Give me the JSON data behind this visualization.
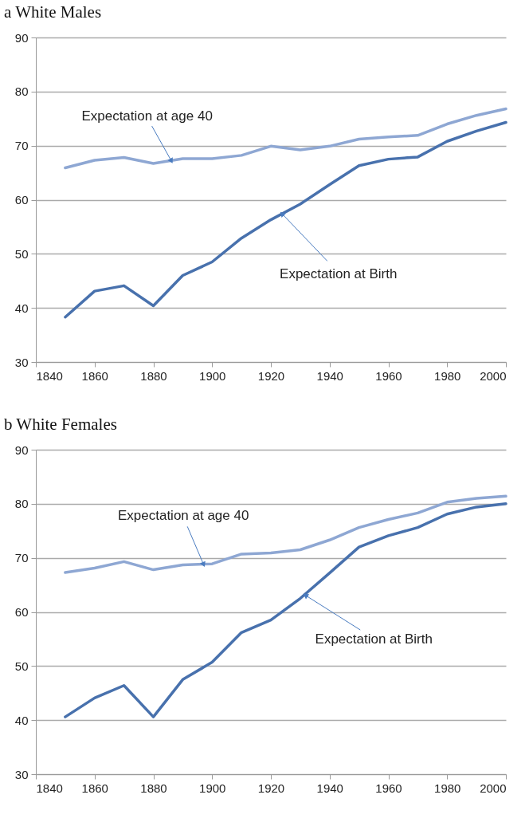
{
  "chart_data": [
    {
      "type": "line",
      "title": "a White Males",
      "x": [
        1850,
        1860,
        1870,
        1880,
        1890,
        1900,
        1910,
        1920,
        1930,
        1940,
        1950,
        1960,
        1970,
        1980,
        1990,
        2000
      ],
      "series": [
        {
          "color": "#8ea7d3",
          "values": [
            65.9,
            67.3,
            67.8,
            66.7,
            67.6,
            67.6,
            68.2,
            69.9,
            69.2,
            69.9,
            71.2,
            71.6,
            71.9,
            74.0,
            75.6,
            76.8
          ]
        },
        {
          "color": "#4871ad",
          "values": [
            38.3,
            43.1,
            44.1,
            40.4,
            46.0,
            48.5,
            52.9,
            56.3,
            59.2,
            62.8,
            66.3,
            67.5,
            67.9,
            70.8,
            72.7,
            74.3
          ]
        }
      ],
      "annotations": [
        {
          "text": "Expectation at age 40",
          "x": 1886,
          "y": 67.3
        },
        {
          "text": "Expectation at Birth",
          "x": 1924,
          "y": 57.3
        }
      ],
      "xlim": [
        1840,
        2000
      ],
      "xticks": [
        1840,
        1860,
        1880,
        1900,
        1920,
        1940,
        1960,
        1980,
        2000
      ],
      "ylim": [
        30,
        90
      ],
      "yticks": [
        30,
        40,
        50,
        60,
        70,
        80,
        90
      ],
      "grid": "y"
    },
    {
      "type": "line",
      "title": "b White Females",
      "x": [
        1850,
        1860,
        1870,
        1880,
        1890,
        1900,
        1910,
        1920,
        1930,
        1940,
        1950,
        1960,
        1970,
        1980,
        1990,
        2000
      ],
      "series": [
        {
          "color": "#8ea7d3",
          "values": [
            67.3,
            68.1,
            69.3,
            67.8,
            68.7,
            68.9,
            70.7,
            70.9,
            71.5,
            73.3,
            75.6,
            77.1,
            78.3,
            80.3,
            81.0,
            81.4
          ]
        },
        {
          "color": "#4871ad",
          "values": [
            40.6,
            44.1,
            46.4,
            40.6,
            47.5,
            50.7,
            56.2,
            58.5,
            62.5,
            67.2,
            72.0,
            74.1,
            75.6,
            78.1,
            79.4,
            80.0
          ]
        }
      ],
      "annotations": [
        {
          "text": "Expectation at age 40",
          "x": 1897,
          "y": 68.9
        },
        {
          "text": "Expectation at Birth",
          "x": 1932,
          "y": 63.0
        }
      ],
      "xlim": [
        1840,
        2000
      ],
      "xticks": [
        1840,
        1860,
        1880,
        1900,
        1920,
        1940,
        1960,
        1980,
        2000
      ],
      "ylim": [
        30,
        90
      ],
      "yticks": [
        30,
        40,
        50,
        60,
        70,
        80,
        90
      ],
      "grid": "y"
    }
  ]
}
